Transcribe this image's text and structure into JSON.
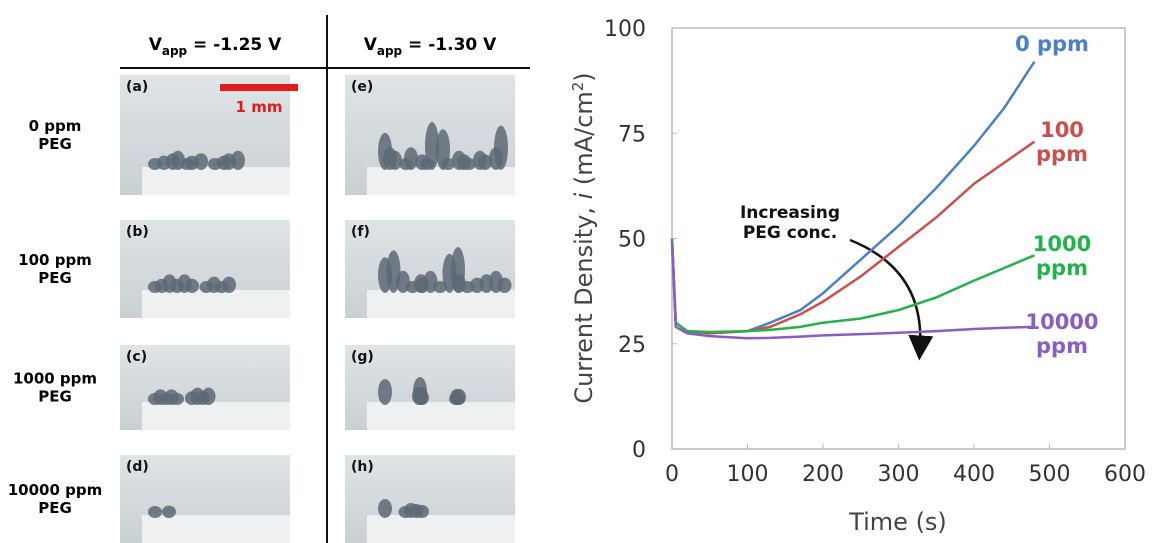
{
  "panels": {
    "column_headers": [
      {
        "symbol": "V",
        "subscript": "app",
        "text": " = -1.25 V"
      },
      {
        "symbol": "V",
        "subscript": "app",
        "text": " = -1.30 V"
      }
    ],
    "row_labels": [
      [
        "0 ppm",
        "PEG"
      ],
      [
        "100 ppm",
        "PEG"
      ],
      [
        "1000 ppm",
        "PEG"
      ],
      [
        "10000 ppm",
        "PEG"
      ]
    ],
    "panel_letters": [
      "(a)",
      "(b)",
      "(c)",
      "(d)",
      "(e)",
      "(f)",
      "(g)",
      "(h)"
    ],
    "scale_bar": "1 mm"
  },
  "chart_data": {
    "type": "line",
    "xlabel": "Time (s)",
    "ylabel": {
      "text": "Current Density, ",
      "italic": "i",
      "unit": " (mA/cm",
      "superscript": "2",
      "close": ")"
    },
    "annotation": [
      "Increasing",
      "PEG conc."
    ],
    "x": [
      0,
      5,
      20,
      50,
      100,
      130,
      170,
      200,
      250,
      300,
      350,
      400,
      440,
      480
    ],
    "series": [
      {
        "name": "0 ppm",
        "color": "#4a80c4",
        "values": [
          50,
          30,
          28,
          27.5,
          28,
          30,
          33,
          37,
          45,
          53,
          62,
          72,
          81,
          92
        ]
      },
      {
        "name": "100 ppm",
        "color": "#c9504c",
        "values": [
          50,
          30,
          28,
          27.5,
          28,
          29,
          32,
          35,
          41,
          48,
          55,
          63,
          68,
          73
        ]
      },
      {
        "name": "1000 ppm",
        "color": "#22b24a",
        "values": [
          50,
          30,
          28,
          27.8,
          28,
          28.3,
          29,
          30,
          31,
          33,
          36,
          40,
          43,
          46
        ]
      },
      {
        "name": "10000 ppm",
        "color": "#8a5cc4",
        "values": [
          49,
          29,
          27.5,
          26.8,
          26.3,
          26.4,
          26.7,
          27,
          27.3,
          27.6,
          28,
          28.5,
          28.8,
          29
        ]
      }
    ],
    "xlim": [
      0,
      600
    ],
    "ylim": [
      0,
      100
    ],
    "xticks": [
      0,
      100,
      200,
      300,
      400,
      500,
      600
    ],
    "yticks": [
      0,
      25,
      50,
      75,
      100
    ]
  }
}
